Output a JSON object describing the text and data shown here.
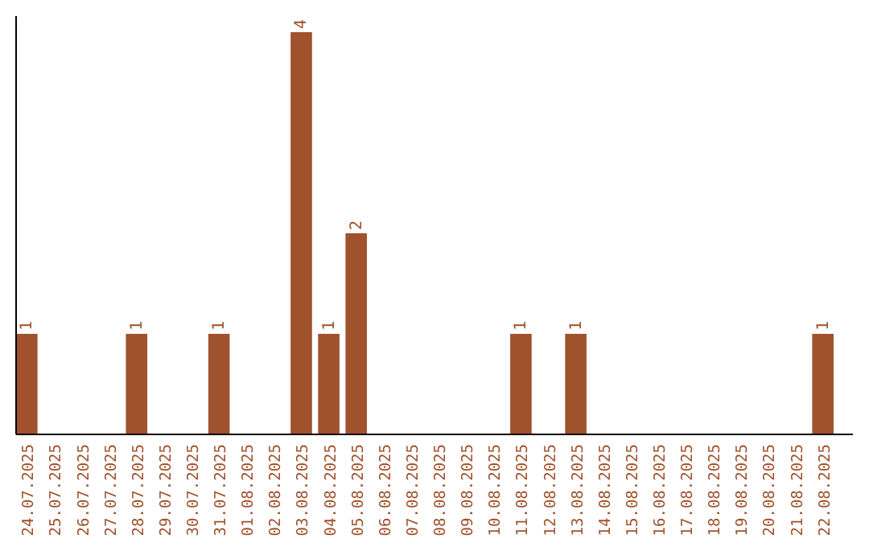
{
  "chart_data": {
    "type": "bar",
    "categories": [
      "24.07.2025",
      "25.07.2025",
      "26.07.2025",
      "27.07.2025",
      "28.07.2025",
      "29.07.2025",
      "30.07.2025",
      "31.07.2025",
      "01.08.2025",
      "02.08.2025",
      "03.08.2025",
      "04.08.2025",
      "05.08.2025",
      "06.08.2025",
      "07.08.2025",
      "08.08.2025",
      "09.08.2025",
      "10.08.2025",
      "11.08.2025",
      "12.08.2025",
      "13.08.2025",
      "14.08.2025",
      "15.08.2025",
      "16.08.2025",
      "17.08.2025",
      "18.08.2025",
      "19.08.2025",
      "20.08.2025",
      "21.08.2025",
      "22.08.2025"
    ],
    "values": [
      1,
      0,
      0,
      0,
      1,
      0,
      0,
      1,
      0,
      0,
      4,
      1,
      2,
      0,
      0,
      0,
      0,
      0,
      1,
      0,
      1,
      0,
      0,
      0,
      0,
      0,
      0,
      0,
      0,
      1
    ],
    "value_labels": [
      "1",
      null,
      null,
      null,
      "1",
      null,
      null,
      "1",
      null,
      null,
      "4",
      "1",
      "2",
      null,
      null,
      null,
      null,
      null,
      "1",
      null,
      "1",
      null,
      null,
      null,
      null,
      null,
      null,
      null,
      null,
      "1"
    ],
    "color": "#a0522d"
  }
}
